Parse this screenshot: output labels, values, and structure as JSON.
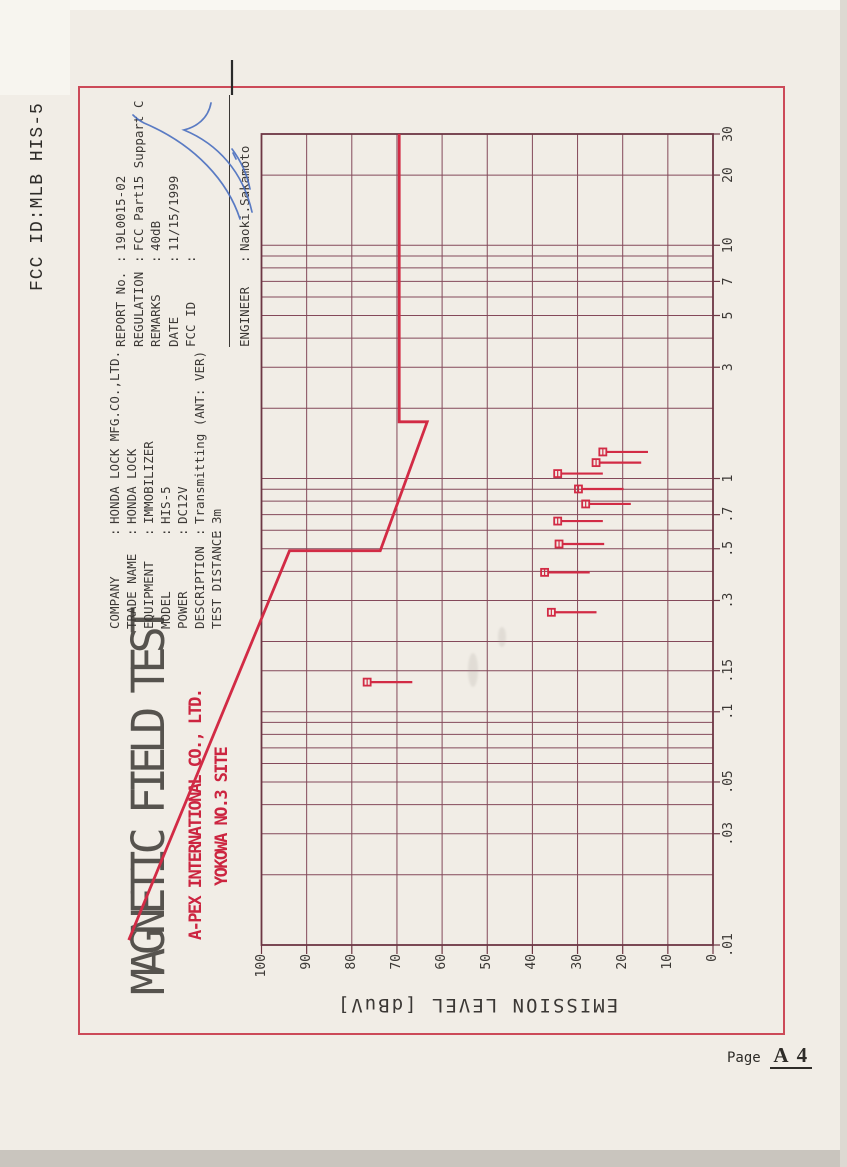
{
  "header": {
    "fcc_id": "FCC ID:MLB HIS-5"
  },
  "footer": {
    "page_label": "Page",
    "page_number": "A 4"
  },
  "info": {
    "company_table": [
      {
        "label": "COMPANY",
        "value": "HONDA LOCK MFG.CO.,LTD."
      },
      {
        "label": "TRADE NAME",
        "value": "HONDA LOCK"
      },
      {
        "label": "EQUIPMENT",
        "value": "IMMOBILIZER"
      },
      {
        "label": "MODEL",
        "value": "HIS-5"
      },
      {
        "label": "POWER",
        "value": "DC12V"
      },
      {
        "label": "DESCRIPTION",
        "value": "Transmitting (ANT: VER)"
      },
      {
        "label": "TEST DISTANCE",
        "value": "3m"
      }
    ],
    "report_table": [
      {
        "label": "REPORT No.",
        "value": "19L0015-02"
      },
      {
        "label": "REGULATION",
        "value": "FCC Part15 Suppart C"
      },
      {
        "label": "REMARKS",
        "value": "40dB"
      },
      {
        "label": "DATE",
        "value": "11/15/1999"
      },
      {
        "label": "FCC ID",
        "value": ""
      }
    ],
    "engineer_row": {
      "label": "ENGINEER",
      "value": "Naoki.Sakamoto"
    }
  },
  "chart_data": {
    "type": "scatter",
    "title": "MAGNETIC FIELD TEST",
    "site_line1": "A-PEX INTERNATIONAL CO., LTD.",
    "site_line2": "YOKOWA NO.3 SITE",
    "x_axis": {
      "scale": "log",
      "range_mhz": [
        0.01,
        30
      ],
      "tick_values": [
        0.01,
        0.03,
        0.05,
        0.1,
        0.15,
        0.3,
        0.5,
        0.7,
        1,
        3,
        5,
        7,
        10,
        20,
        30
      ],
      "tick_labels": [
        ".01",
        ".03",
        ".05",
        ".1",
        ".15",
        ".3",
        ".5",
        ".7",
        "1",
        "3",
        "5",
        "7",
        "10",
        "20",
        "30"
      ],
      "gridline_values": [
        0.01,
        0.02,
        0.03,
        0.04,
        0.05,
        0.06,
        0.07,
        0.08,
        0.09,
        0.1,
        0.15,
        0.2,
        0.3,
        0.4,
        0.5,
        0.6,
        0.7,
        0.8,
        0.9,
        1,
        2,
        3,
        4,
        5,
        6,
        7,
        8,
        9,
        10,
        20,
        30
      ]
    },
    "y_axis": {
      "label": "EMISSION LEVEL  [dBuV]",
      "range": [
        0,
        100
      ],
      "step": 10,
      "tick_labels": [
        "0",
        "10",
        "20",
        "30",
        "40",
        "50",
        "60",
        "70",
        "80",
        "90",
        "100"
      ]
    },
    "limit_line": {
      "name": "FCC Part15 limit",
      "points_f_db": [
        [
          0.0105,
          129.4
        ],
        [
          0.49,
          93.8
        ],
        [
          0.49,
          73.7
        ],
        [
          1.75,
          63.3
        ],
        [
          1.75,
          69.5
        ],
        [
          30,
          69.5
        ]
      ]
    },
    "points": [
      {
        "f_mhz": 0.134,
        "level_db": 76.6
      },
      {
        "f_mhz": 0.267,
        "level_db": 35.8
      },
      {
        "f_mhz": 0.396,
        "level_db": 37.3
      },
      {
        "f_mhz": 0.524,
        "level_db": 34.1
      },
      {
        "f_mhz": 0.657,
        "level_db": 34.4
      },
      {
        "f_mhz": 0.778,
        "level_db": 28.2
      },
      {
        "f_mhz": 0.902,
        "level_db": 29.8
      },
      {
        "f_mhz": 1.05,
        "level_db": 34.4
      },
      {
        "f_mhz": 1.17,
        "level_db": 25.9
      },
      {
        "f_mhz": 1.3,
        "level_db": 24.4
      }
    ],
    "point_tail_db": 10,
    "legend": null,
    "grid": true
  },
  "colors": {
    "crimson": "#d22b45",
    "frame_red": "#cc4a58",
    "grid": "#84495a",
    "grid_border": "#6d3644",
    "ink": "#3b3835",
    "red_text": "#cc2540",
    "signature_blue": "#4a6fc0"
  }
}
